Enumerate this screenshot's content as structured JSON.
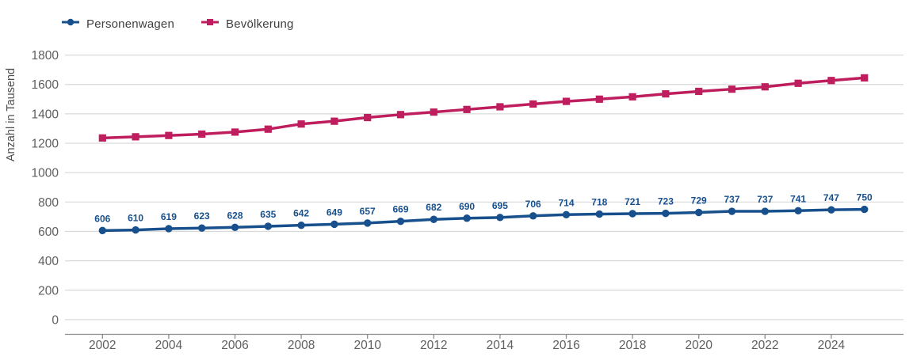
{
  "chart_data": {
    "type": "line",
    "title": "",
    "xlabel": "",
    "ylabel": "Anzahl in Tausend",
    "ylim": [
      0,
      1800
    ],
    "ytick_step": 200,
    "y_ticks": [
      0,
      200,
      400,
      600,
      800,
      1000,
      1200,
      1400,
      1600,
      1800
    ],
    "x_tick_labels": [
      "2002",
      "2004",
      "2006",
      "2008",
      "2010",
      "2012",
      "2014",
      "2016",
      "2018",
      "2020",
      "2022",
      "2024"
    ],
    "x_tick_interval": 2,
    "grid": "horizontal",
    "legend_position": "top-left",
    "categories": [
      2002,
      2003,
      2004,
      2005,
      2006,
      2007,
      2008,
      2009,
      2010,
      2011,
      2012,
      2013,
      2014,
      2015,
      2016,
      2017,
      2018,
      2019,
      2020,
      2021,
      2022,
      2023,
      2024,
      2025
    ],
    "series": [
      {
        "name": "Personenwagen",
        "color": "#17508c",
        "marker": "circle",
        "data_labels": true,
        "values": [
          606,
          610,
          619,
          623,
          628,
          635,
          642,
          649,
          657,
          669,
          682,
          690,
          695,
          706,
          714,
          718,
          721,
          723,
          729,
          737,
          737,
          741,
          747,
          750
        ]
      },
      {
        "name": "Bevölkerung",
        "color": "#be1e5d",
        "marker": "square",
        "data_labels": false,
        "values": [
          1236,
          1244,
          1253,
          1262,
          1276,
          1296,
          1331,
          1350,
          1375,
          1395,
          1412,
          1430,
          1448,
          1467,
          1485,
          1500,
          1516,
          1536,
          1553,
          1568,
          1584,
          1608,
          1627,
          1645
        ]
      }
    ],
    "colors": {
      "grid": "#d9d9d9",
      "axis_line": "#8c8c8c",
      "tick_text": "#5f5f5f",
      "legend_text": "#3f3f3f"
    }
  }
}
